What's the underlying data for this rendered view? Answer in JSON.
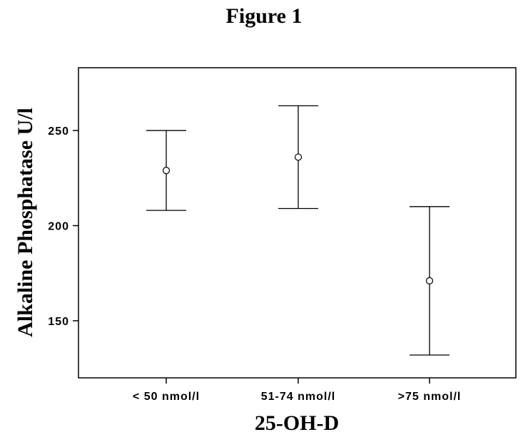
{
  "figure": {
    "title": "Figure 1"
  },
  "chart_data": {
    "type": "errorbar",
    "title": "Figure 1",
    "xlabel": "25-OH-D",
    "ylabel": "Alkaline Phosphatase U/l",
    "categories": [
      "< 50 nmol/l",
      "51-74 nmol/l",
      ">75 nmol/l"
    ],
    "means": [
      229,
      236,
      171
    ],
    "lower": [
      208,
      209,
      132
    ],
    "upper": [
      250,
      263,
      210
    ],
    "ylim": [
      120,
      283
    ],
    "yticks": [
      150,
      200,
      250
    ],
    "grid": false,
    "marker": "open-circle"
  }
}
